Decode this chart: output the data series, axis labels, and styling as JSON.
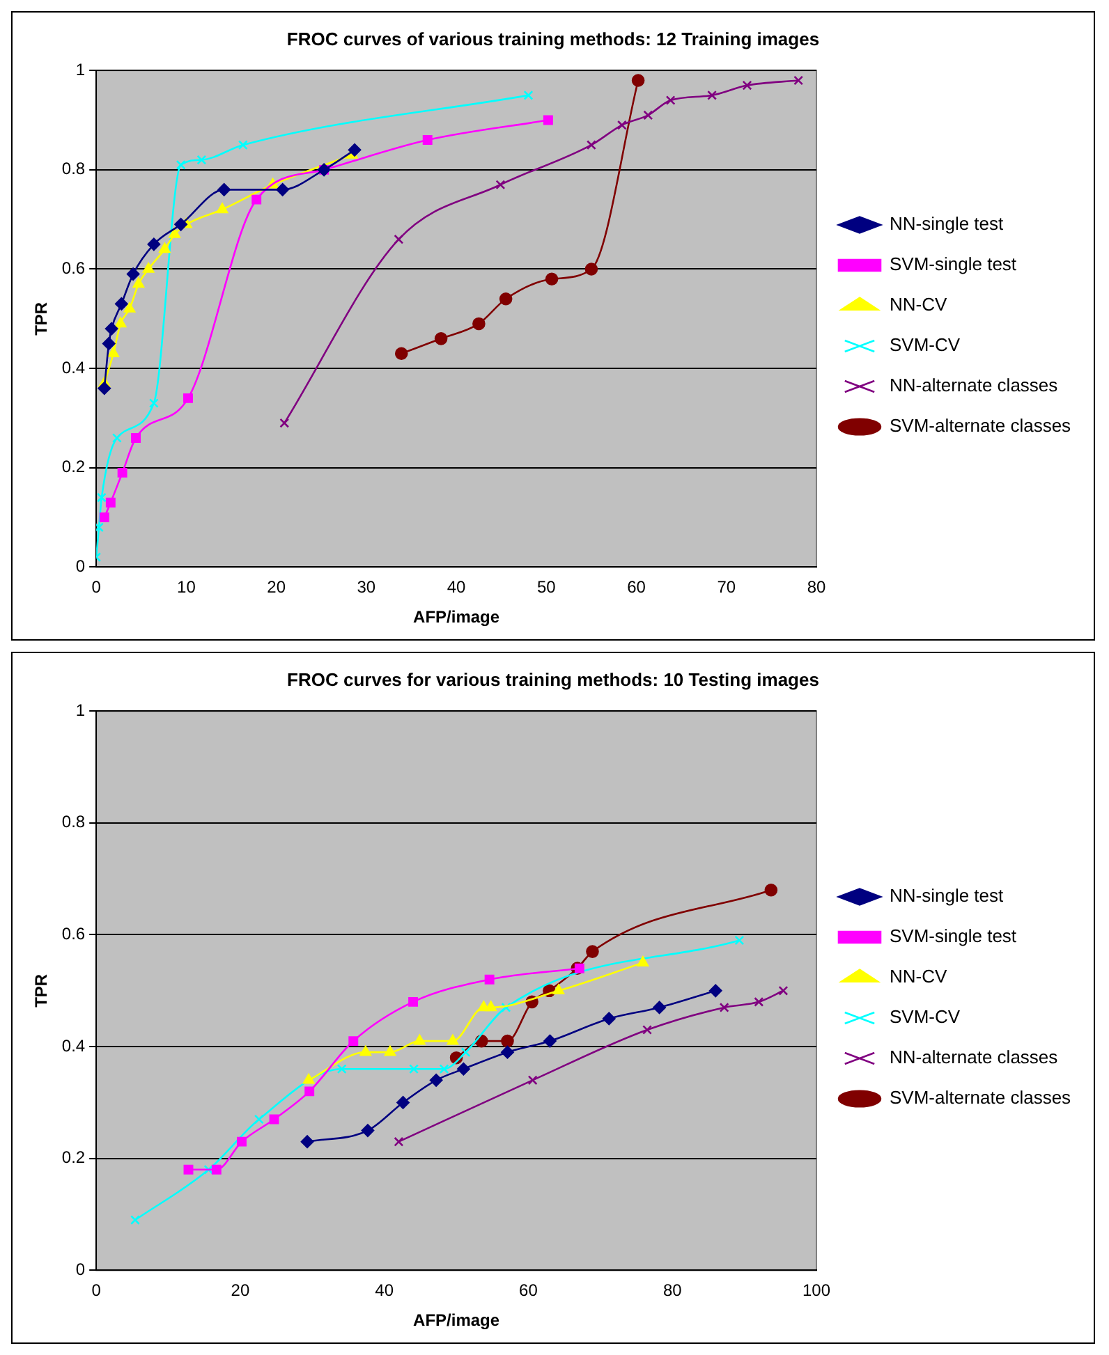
{
  "chart_data": [
    {
      "type": "line",
      "title": "FROC curves of various training methods: 12 Training images",
      "xlabel": "AFP/image",
      "ylabel": "TPR",
      "xlim": [
        0,
        80
      ],
      "xticks": [
        0,
        10,
        20,
        30,
        40,
        50,
        60,
        70,
        80
      ],
      "ylim": [
        0,
        1
      ],
      "yticks": [
        0,
        0.2,
        0.4,
        0.6,
        0.8,
        1
      ],
      "grid": "y",
      "legend": "right",
      "series": [
        {
          "name": "NN-single test",
          "color": "#000080",
          "marker": "diamond",
          "x": [
            0.9,
            1.4,
            1.7,
            2.8,
            4.1,
            6.4,
            9.4,
            14.2,
            20.7,
            25.3,
            28.7
          ],
          "values": [
            0.36,
            0.45,
            0.48,
            0.53,
            0.59,
            0.65,
            0.69,
            0.76,
            0.76,
            0.8,
            0.84
          ]
        },
        {
          "name": "SVM-single test",
          "color": "#ff00ff",
          "marker": "square",
          "x": [
            0.9,
            1.6,
            2.9,
            4.4,
            10.2,
            17.8,
            25.3,
            36.8,
            50.2
          ],
          "values": [
            0.1,
            0.13,
            0.19,
            0.26,
            0.34,
            0.74,
            0.8,
            0.86,
            0.9
          ]
        },
        {
          "name": "NN-CV",
          "color": "#ffff00",
          "marker": "triangle",
          "x": [
            0.9,
            1.9,
            2.7,
            3.7,
            4.7,
            5.8,
            7.6,
            8.7,
            10,
            14,
            19.6,
            28.4
          ],
          "values": [
            0.37,
            0.43,
            0.49,
            0.52,
            0.57,
            0.6,
            0.64,
            0.67,
            0.69,
            0.72,
            0.77,
            0.83
          ]
        },
        {
          "name": "SVM-CV",
          "color": "#00ffff",
          "marker": "cross",
          "x": [
            0,
            0.3,
            0.6,
            2.3,
            6.4,
            9.4,
            11.7,
            16.3,
            48
          ],
          "values": [
            0.02,
            0.08,
            0.14,
            0.26,
            0.33,
            0.81,
            0.82,
            0.85,
            0.95
          ]
        },
        {
          "name": "NN-alternate classes",
          "color": "#800080",
          "marker": "cross",
          "x": [
            20.9,
            33.6,
            44.9,
            55,
            58.4,
            61.3,
            63.8,
            68.4,
            72.3,
            78
          ],
          "values": [
            0.29,
            0.66,
            0.77,
            0.85,
            0.89,
            0.91,
            0.94,
            0.95,
            0.97,
            0.98
          ]
        },
        {
          "name": "SVM-alternate classes",
          "color": "#800000",
          "marker": "circle",
          "x": [
            33.9,
            38.3,
            42.5,
            45.5,
            50.6,
            55,
            60.2
          ],
          "values": [
            0.43,
            0.46,
            0.49,
            0.54,
            0.58,
            0.6,
            0.98
          ]
        }
      ]
    },
    {
      "type": "line",
      "title": "FROC curves for various training methods: 10 Testing images",
      "xlabel": "AFP/image",
      "ylabel": "TPR",
      "xlim": [
        0,
        100
      ],
      "xticks": [
        0,
        20,
        40,
        60,
        80,
        100
      ],
      "ylim": [
        0,
        1
      ],
      "yticks": [
        0,
        0.2,
        0.4,
        0.6,
        0.8,
        1
      ],
      "grid": "y",
      "legend": "right",
      "series": [
        {
          "name": "NN-single test",
          "color": "#000080",
          "marker": "diamond",
          "x": [
            29.3,
            37.7,
            42.6,
            47.2,
            51,
            57.1,
            63,
            71.2,
            78.2,
            86
          ],
          "values": [
            0.23,
            0.25,
            0.3,
            0.34,
            0.36,
            0.39,
            0.41,
            0.45,
            0.47,
            0.5
          ]
        },
        {
          "name": "SVM-single test",
          "color": "#ff00ff",
          "marker": "square",
          "x": [
            12.8,
            16.7,
            20.2,
            24.7,
            29.6,
            35.7,
            44,
            54.6,
            67.1
          ],
          "values": [
            0.18,
            0.18,
            0.23,
            0.27,
            0.32,
            0.41,
            0.48,
            0.52,
            0.54
          ]
        },
        {
          "name": "NN-CV",
          "color": "#ffff00",
          "marker": "triangle",
          "x": [
            29.5,
            37.4,
            40.8,
            44.9,
            49.5,
            53.8,
            54.8,
            64.2,
            75.9
          ],
          "values": [
            0.34,
            0.39,
            0.39,
            0.41,
            0.41,
            0.47,
            0.47,
            0.5,
            0.55
          ]
        },
        {
          "name": "SVM-CV",
          "color": "#00ffff",
          "marker": "cross",
          "x": [
            5.4,
            15.6,
            22.6,
            34.1,
            44.1,
            48.3,
            51.3,
            56.9,
            89.3
          ],
          "values": [
            0.09,
            0.18,
            0.27,
            0.36,
            0.36,
            0.36,
            0.39,
            0.47,
            0.59
          ]
        },
        {
          "name": "NN-alternate classes",
          "color": "#800080",
          "marker": "cross",
          "x": [
            42,
            60.6,
            76.5,
            87.2,
            92,
            95.4
          ],
          "values": [
            0.23,
            0.34,
            0.43,
            0.47,
            0.48,
            0.5
          ]
        },
        {
          "name": "SVM-alternate classes",
          "color": "#800000",
          "marker": "circle",
          "x": [
            50,
            53.5,
            57.1,
            60.5,
            62.9,
            66.8,
            68.9,
            93.7
          ],
          "values": [
            0.38,
            0.41,
            0.41,
            0.48,
            0.5,
            0.54,
            0.57,
            0.68
          ]
        }
      ]
    }
  ]
}
